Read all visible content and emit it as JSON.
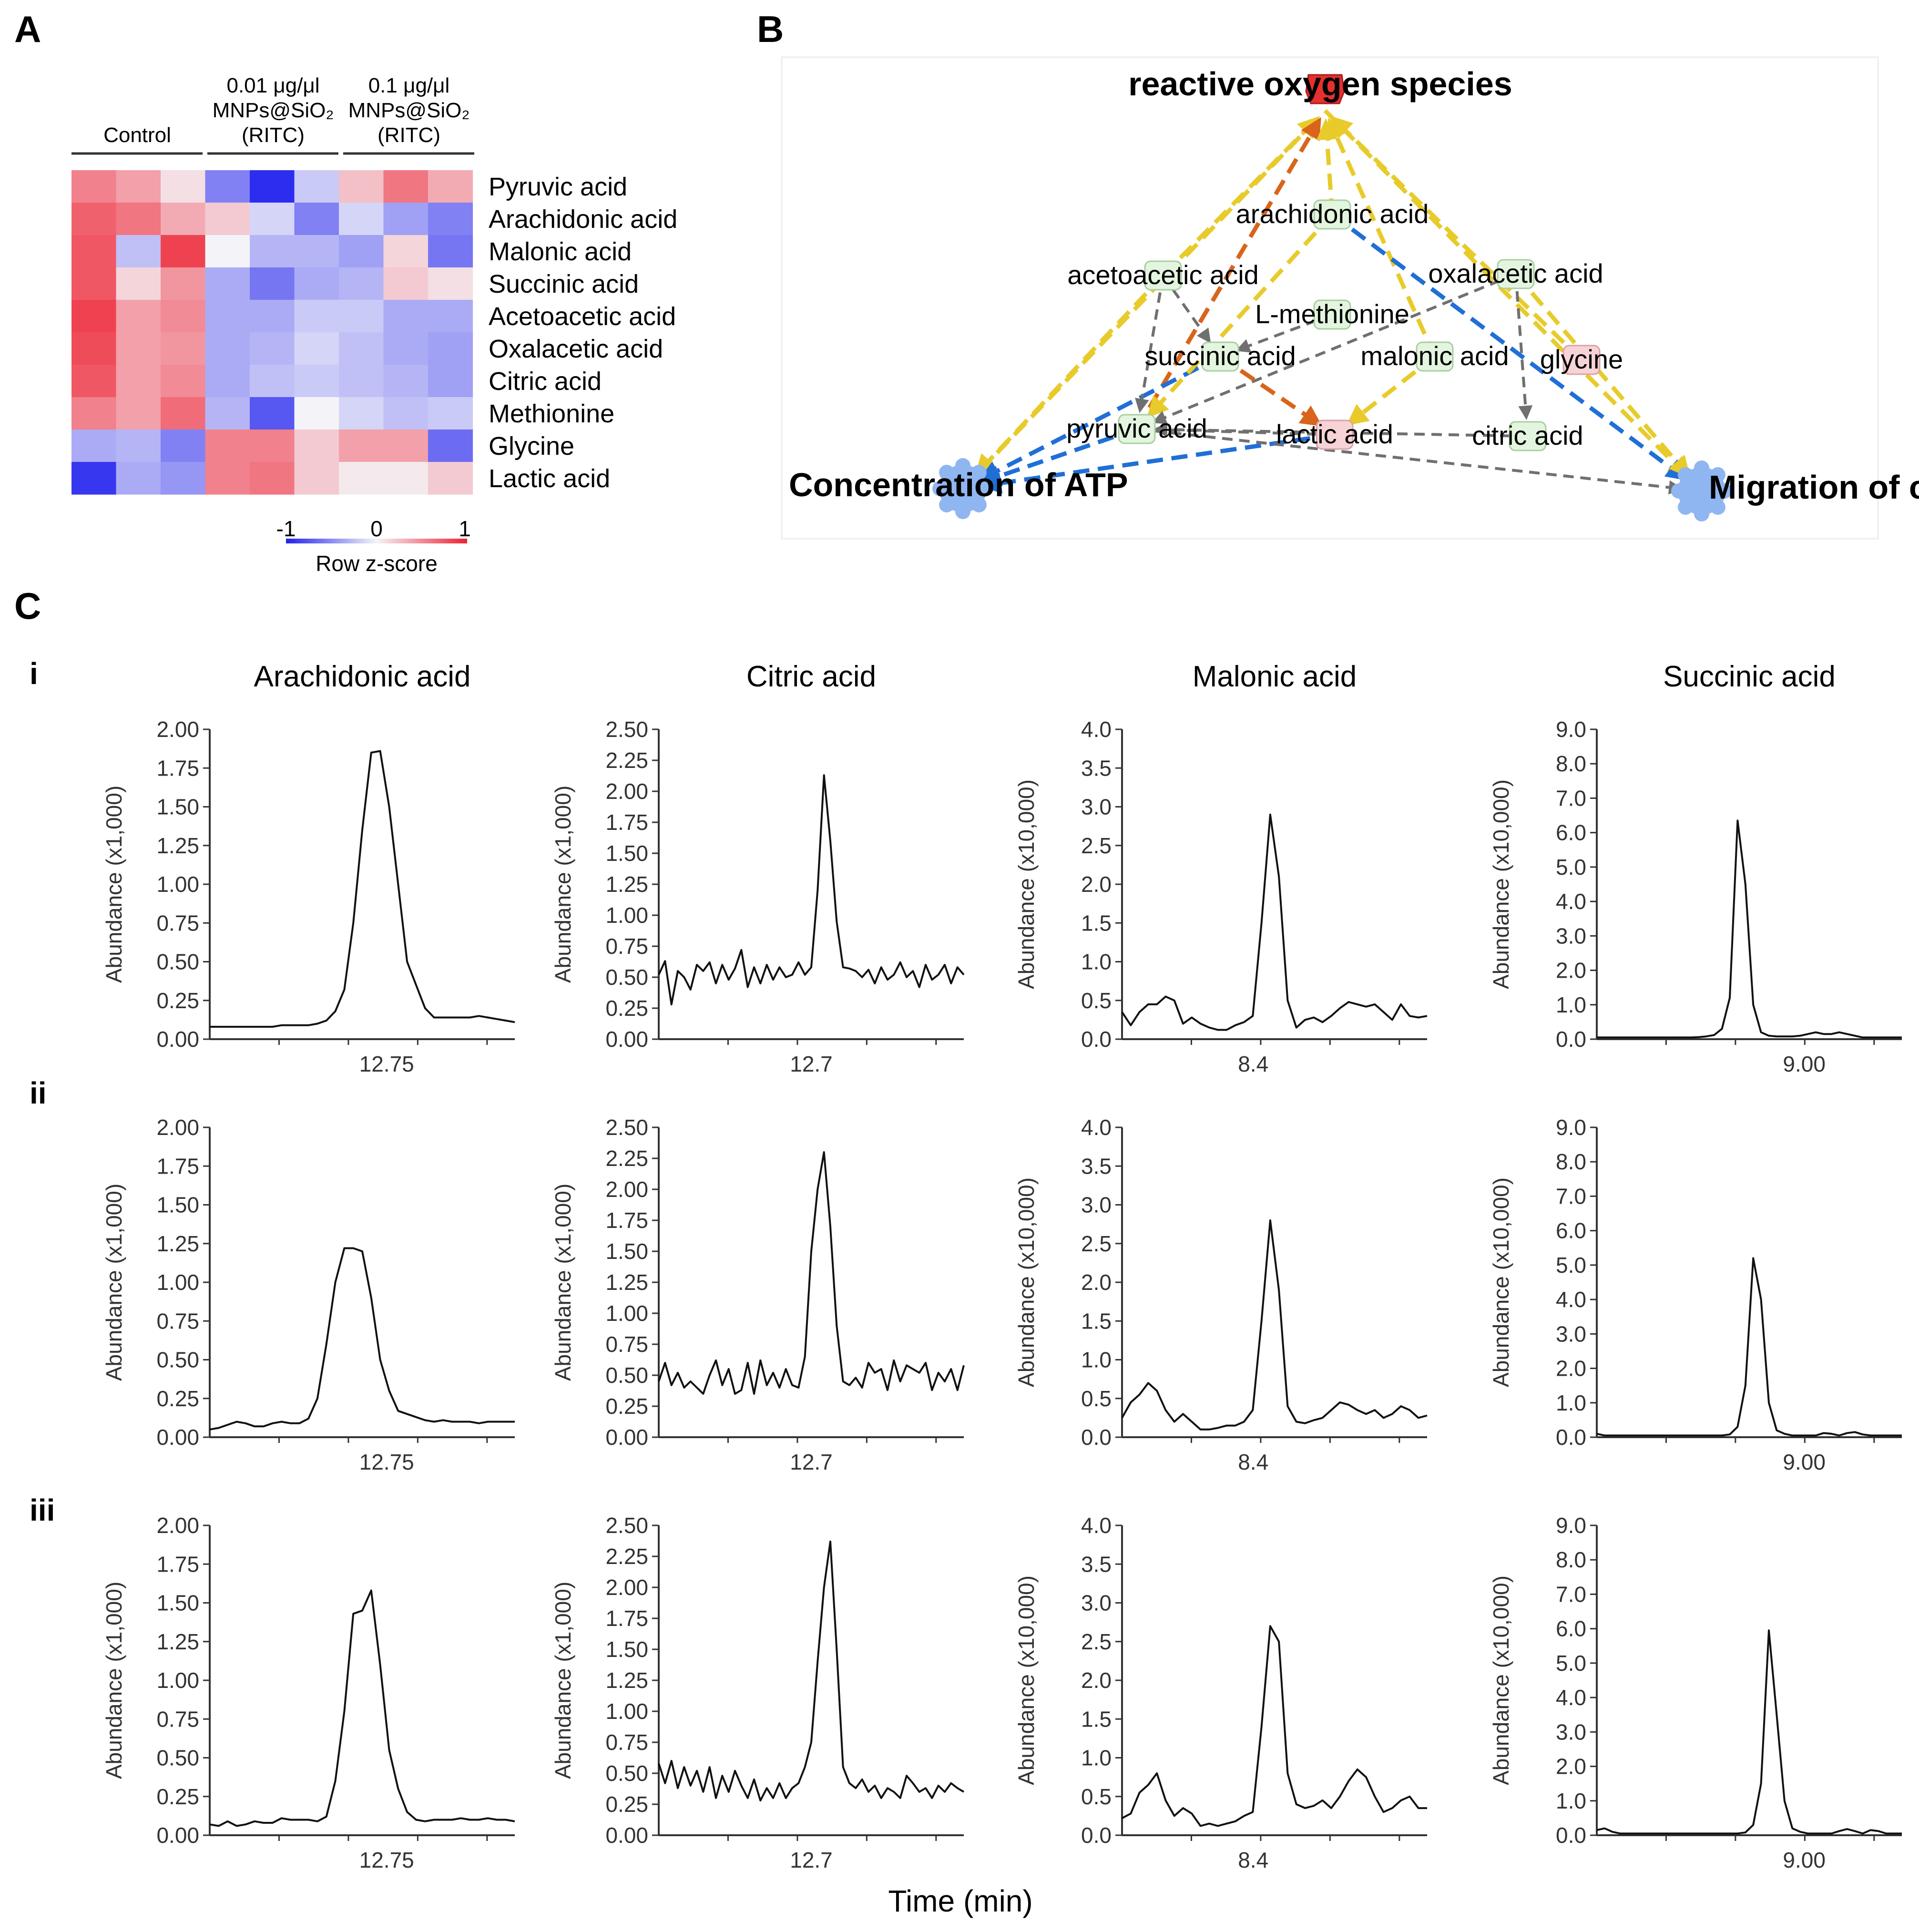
{
  "panel_labels": {
    "a": "A",
    "b": "B",
    "c": "C"
  },
  "row_labels": [
    "i",
    "ii",
    "iii"
  ],
  "heatmap": {
    "groups": [
      {
        "lines": [
          "Control"
        ]
      },
      {
        "lines": [
          "0.01 μg/μl",
          "MNPs@SiO₂",
          "(RITC)"
        ]
      },
      {
        "lines": [
          "0.1 μg/μl",
          "MNPs@SiO₂",
          "(RITC)"
        ]
      }
    ],
    "rows": [
      "Pyruvic acid",
      "Arachidonic acid",
      "Malonic acid",
      "Succinic acid",
      "Acetoacetic acid",
      "Oxalacetic acid",
      "Citric acid",
      "Methionine",
      "Glycine",
      "Lactic acid"
    ],
    "values": [
      [
        0.55,
        0.4,
        0.1,
        -0.55,
        -0.95,
        -0.2,
        0.25,
        0.6,
        0.35
      ],
      [
        0.7,
        0.6,
        0.35,
        0.2,
        -0.15,
        -0.55,
        -0.15,
        -0.4,
        -0.55
      ],
      [
        0.75,
        -0.25,
        0.85,
        0.0,
        -0.3,
        -0.3,
        -0.4,
        0.15,
        -0.6
      ],
      [
        0.75,
        0.15,
        0.45,
        -0.35,
        -0.6,
        -0.35,
        -0.3,
        0.2,
        0.1
      ],
      [
        0.85,
        0.4,
        0.5,
        -0.35,
        -0.35,
        -0.2,
        -0.2,
        -0.35,
        -0.35
      ],
      [
        0.8,
        0.4,
        0.45,
        -0.35,
        -0.3,
        -0.15,
        -0.25,
        -0.35,
        -0.4
      ],
      [
        0.75,
        0.4,
        0.5,
        -0.35,
        -0.25,
        -0.2,
        -0.25,
        -0.3,
        -0.4
      ],
      [
        0.55,
        0.4,
        0.65,
        -0.3,
        -0.75,
        0.0,
        -0.15,
        -0.25,
        -0.2
      ],
      [
        -0.35,
        -0.3,
        -0.55,
        0.55,
        0.55,
        0.2,
        0.4,
        0.4,
        -0.65
      ],
      [
        -0.9,
        -0.35,
        -0.45,
        0.55,
        0.6,
        0.2,
        0.05,
        0.05,
        0.2
      ]
    ],
    "colorbar": {
      "min": "-1",
      "mid": "0",
      "max": "1",
      "label": "Row z-score"
    },
    "colors": {
      "low": "#2222ee",
      "mid": "#f4f4f8",
      "high": "#ee2233"
    }
  },
  "network": {
    "nodes": [
      {
        "id": "ros",
        "label": "reactive oxygen species",
        "kind": "main"
      },
      {
        "id": "arachidonic",
        "label": "arachidonic acid",
        "kind": "green"
      },
      {
        "id": "acetoacetic",
        "label": "acetoacetic acid",
        "kind": "green"
      },
      {
        "id": "oxalacetic",
        "label": "oxalacetic acid",
        "kind": "green"
      },
      {
        "id": "methionine",
        "label": "L-methionine",
        "kind": "green"
      },
      {
        "id": "succinic",
        "label": "succinic acid",
        "kind": "green"
      },
      {
        "id": "malonic",
        "label": "malonic acid",
        "kind": "green"
      },
      {
        "id": "glycine",
        "label": "glycine",
        "kind": "red"
      },
      {
        "id": "pyruvic",
        "label": "pyruvic acid",
        "kind": "green"
      },
      {
        "id": "lactic",
        "label": "lactic acid",
        "kind": "red"
      },
      {
        "id": "citric",
        "label": "citric acid",
        "kind": "green"
      },
      {
        "id": "atp",
        "label": "Concentration of ATP",
        "kind": "main"
      },
      {
        "id": "migration",
        "label": "Migration of cells",
        "kind": "main"
      }
    ],
    "colors": {
      "yellow": "#e8cb2a",
      "blue": "#1f6fd6",
      "orange": "#d8651b",
      "gray": "#707070",
      "node_green": "#e3f5df",
      "node_red": "#f8d3d6",
      "ros_red": "#e53030",
      "gear": "#8fb6f0"
    }
  },
  "chromatograms": {
    "columns": [
      {
        "title": "Arachidonic acid",
        "ylabel": "Abundance (x1,000)",
        "yticks": [
          "0.00",
          "0.25",
          "0.50",
          "0.75",
          "1.00",
          "1.25",
          "1.50",
          "1.75",
          "2.00"
        ],
        "xtick": "12.75",
        "ymax": 2.0
      },
      {
        "title": "Citric acid",
        "ylabel": "Abundance (x1,000)",
        "yticks": [
          "0.00",
          "0.25",
          "0.50",
          "0.75",
          "1.00",
          "1.25",
          "1.50",
          "1.75",
          "2.00",
          "2.25",
          "2.50"
        ],
        "xtick": "12.7",
        "ymax": 2.5
      },
      {
        "title": "Malonic acid",
        "ylabel": "Abundance (x10,000)",
        "yticks": [
          "0.0",
          "0.5",
          "1.0",
          "1.5",
          "2.0",
          "2.5",
          "3.0",
          "3.5",
          "4.0"
        ],
        "xtick": "8.4",
        "ymax": 4.0
      },
      {
        "title": "Succinic acid",
        "ylabel": "Abundance (x10,000)",
        "yticks": [
          "0.0",
          "1.0",
          "2.0",
          "3.0",
          "4.0",
          "5.0",
          "6.0",
          "7.0",
          "8.0",
          "9.0"
        ],
        "xtick": "9.00",
        "ymax": 9.0
      }
    ],
    "xlabel": "Time (min)",
    "traces": [
      [
        [
          0.08,
          0.08,
          0.08,
          0.08,
          0.08,
          0.08,
          0.08,
          0.08,
          0.09,
          0.09,
          0.09,
          0.09,
          0.1,
          0.12,
          0.18,
          0.32,
          0.75,
          1.35,
          1.85,
          1.86,
          1.5,
          1.0,
          0.5,
          0.35,
          0.2,
          0.14,
          0.14,
          0.14,
          0.14,
          0.14,
          0.15,
          0.14,
          0.13,
          0.12,
          0.11
        ],
        [
          0.05,
          0.06,
          0.08,
          0.1,
          0.09,
          0.07,
          0.07,
          0.09,
          0.1,
          0.09,
          0.09,
          0.12,
          0.25,
          0.6,
          1.0,
          1.22,
          1.22,
          1.2,
          0.9,
          0.5,
          0.3,
          0.17,
          0.15,
          0.13,
          0.11,
          0.1,
          0.11,
          0.1,
          0.1,
          0.1,
          0.09,
          0.1,
          0.1,
          0.1,
          0.1
        ],
        [
          0.07,
          0.06,
          0.09,
          0.06,
          0.07,
          0.09,
          0.08,
          0.08,
          0.11,
          0.1,
          0.1,
          0.1,
          0.09,
          0.12,
          0.35,
          0.8,
          1.43,
          1.45,
          1.58,
          1.1,
          0.55,
          0.3,
          0.15,
          0.1,
          0.09,
          0.1,
          0.1,
          0.1,
          0.11,
          0.1,
          0.1,
          0.11,
          0.1,
          0.1,
          0.09
        ]
      ],
      [
        [
          0.52,
          0.63,
          0.28,
          0.55,
          0.5,
          0.4,
          0.6,
          0.55,
          0.62,
          0.45,
          0.6,
          0.48,
          0.57,
          0.72,
          0.42,
          0.58,
          0.45,
          0.6,
          0.48,
          0.58,
          0.5,
          0.52,
          0.62,
          0.52,
          0.58,
          1.2,
          2.13,
          1.6,
          0.95,
          0.58,
          0.57,
          0.55,
          0.5,
          0.56,
          0.45,
          0.58,
          0.48,
          0.52,
          0.62,
          0.5,
          0.55,
          0.42,
          0.6,
          0.48,
          0.52,
          0.6,
          0.45,
          0.58,
          0.52
        ],
        [
          0.45,
          0.6,
          0.42,
          0.52,
          0.4,
          0.45,
          0.4,
          0.35,
          0.5,
          0.62,
          0.42,
          0.55,
          0.35,
          0.38,
          0.6,
          0.35,
          0.62,
          0.42,
          0.52,
          0.4,
          0.55,
          0.42,
          0.4,
          0.65,
          1.5,
          2.0,
          2.3,
          1.7,
          0.9,
          0.45,
          0.42,
          0.48,
          0.4,
          0.6,
          0.52,
          0.55,
          0.38,
          0.62,
          0.45,
          0.58,
          0.55,
          0.52,
          0.6,
          0.38,
          0.52,
          0.45,
          0.55,
          0.38,
          0.58
        ],
        [
          0.58,
          0.42,
          0.6,
          0.38,
          0.55,
          0.4,
          0.52,
          0.35,
          0.55,
          0.3,
          0.48,
          0.35,
          0.52,
          0.4,
          0.3,
          0.45,
          0.28,
          0.38,
          0.3,
          0.42,
          0.3,
          0.38,
          0.42,
          0.55,
          0.75,
          1.4,
          2.0,
          2.37,
          1.5,
          0.55,
          0.42,
          0.38,
          0.45,
          0.35,
          0.4,
          0.3,
          0.38,
          0.35,
          0.3,
          0.48,
          0.42,
          0.35,
          0.38,
          0.3,
          0.4,
          0.35,
          0.42,
          0.38,
          0.35
        ]
      ],
      [
        [
          0.35,
          0.18,
          0.35,
          0.45,
          0.45,
          0.55,
          0.5,
          0.2,
          0.28,
          0.2,
          0.15,
          0.12,
          0.12,
          0.18,
          0.22,
          0.3,
          1.5,
          2.9,
          2.1,
          0.5,
          0.15,
          0.25,
          0.28,
          0.22,
          0.3,
          0.4,
          0.48,
          0.45,
          0.42,
          0.45,
          0.35,
          0.25,
          0.45,
          0.3,
          0.28,
          0.3
        ],
        [
          0.25,
          0.45,
          0.55,
          0.7,
          0.6,
          0.35,
          0.2,
          0.3,
          0.2,
          0.1,
          0.1,
          0.12,
          0.15,
          0.15,
          0.2,
          0.35,
          1.5,
          2.8,
          1.9,
          0.4,
          0.2,
          0.18,
          0.22,
          0.25,
          0.35,
          0.45,
          0.42,
          0.35,
          0.3,
          0.35,
          0.25,
          0.3,
          0.4,
          0.35,
          0.25,
          0.28
        ],
        [
          0.22,
          0.28,
          0.55,
          0.65,
          0.8,
          0.45,
          0.25,
          0.35,
          0.28,
          0.12,
          0.15,
          0.12,
          0.15,
          0.18,
          0.25,
          0.3,
          1.4,
          2.7,
          2.5,
          0.8,
          0.4,
          0.35,
          0.38,
          0.45,
          0.35,
          0.5,
          0.7,
          0.85,
          0.75,
          0.5,
          0.3,
          0.35,
          0.45,
          0.5,
          0.35,
          0.35
        ]
      ],
      [
        [
          0.05,
          0.05,
          0.05,
          0.05,
          0.05,
          0.05,
          0.05,
          0.05,
          0.05,
          0.05,
          0.05,
          0.05,
          0.05,
          0.06,
          0.08,
          0.12,
          0.3,
          1.2,
          6.35,
          4.5,
          1.0,
          0.2,
          0.1,
          0.08,
          0.08,
          0.08,
          0.1,
          0.15,
          0.2,
          0.15,
          0.15,
          0.2,
          0.15,
          0.1,
          0.05,
          0.05,
          0.05,
          0.05,
          0.05,
          0.05
        ],
        [
          0.1,
          0.05,
          0.05,
          0.05,
          0.05,
          0.05,
          0.05,
          0.05,
          0.05,
          0.05,
          0.05,
          0.05,
          0.05,
          0.05,
          0.05,
          0.05,
          0.05,
          0.08,
          0.3,
          1.5,
          5.2,
          4.0,
          1.0,
          0.2,
          0.1,
          0.05,
          0.05,
          0.05,
          0.05,
          0.12,
          0.1,
          0.05,
          0.12,
          0.15,
          0.08,
          0.05,
          0.05,
          0.05,
          0.05,
          0.05
        ],
        [
          0.15,
          0.2,
          0.1,
          0.05,
          0.05,
          0.05,
          0.05,
          0.05,
          0.05,
          0.05,
          0.05,
          0.05,
          0.05,
          0.05,
          0.05,
          0.05,
          0.05,
          0.05,
          0.05,
          0.08,
          0.3,
          1.5,
          5.95,
          3.5,
          1.0,
          0.2,
          0.1,
          0.05,
          0.05,
          0.05,
          0.05,
          0.12,
          0.18,
          0.12,
          0.05,
          0.15,
          0.12,
          0.05,
          0.05,
          0.05
        ]
      ]
    ]
  }
}
